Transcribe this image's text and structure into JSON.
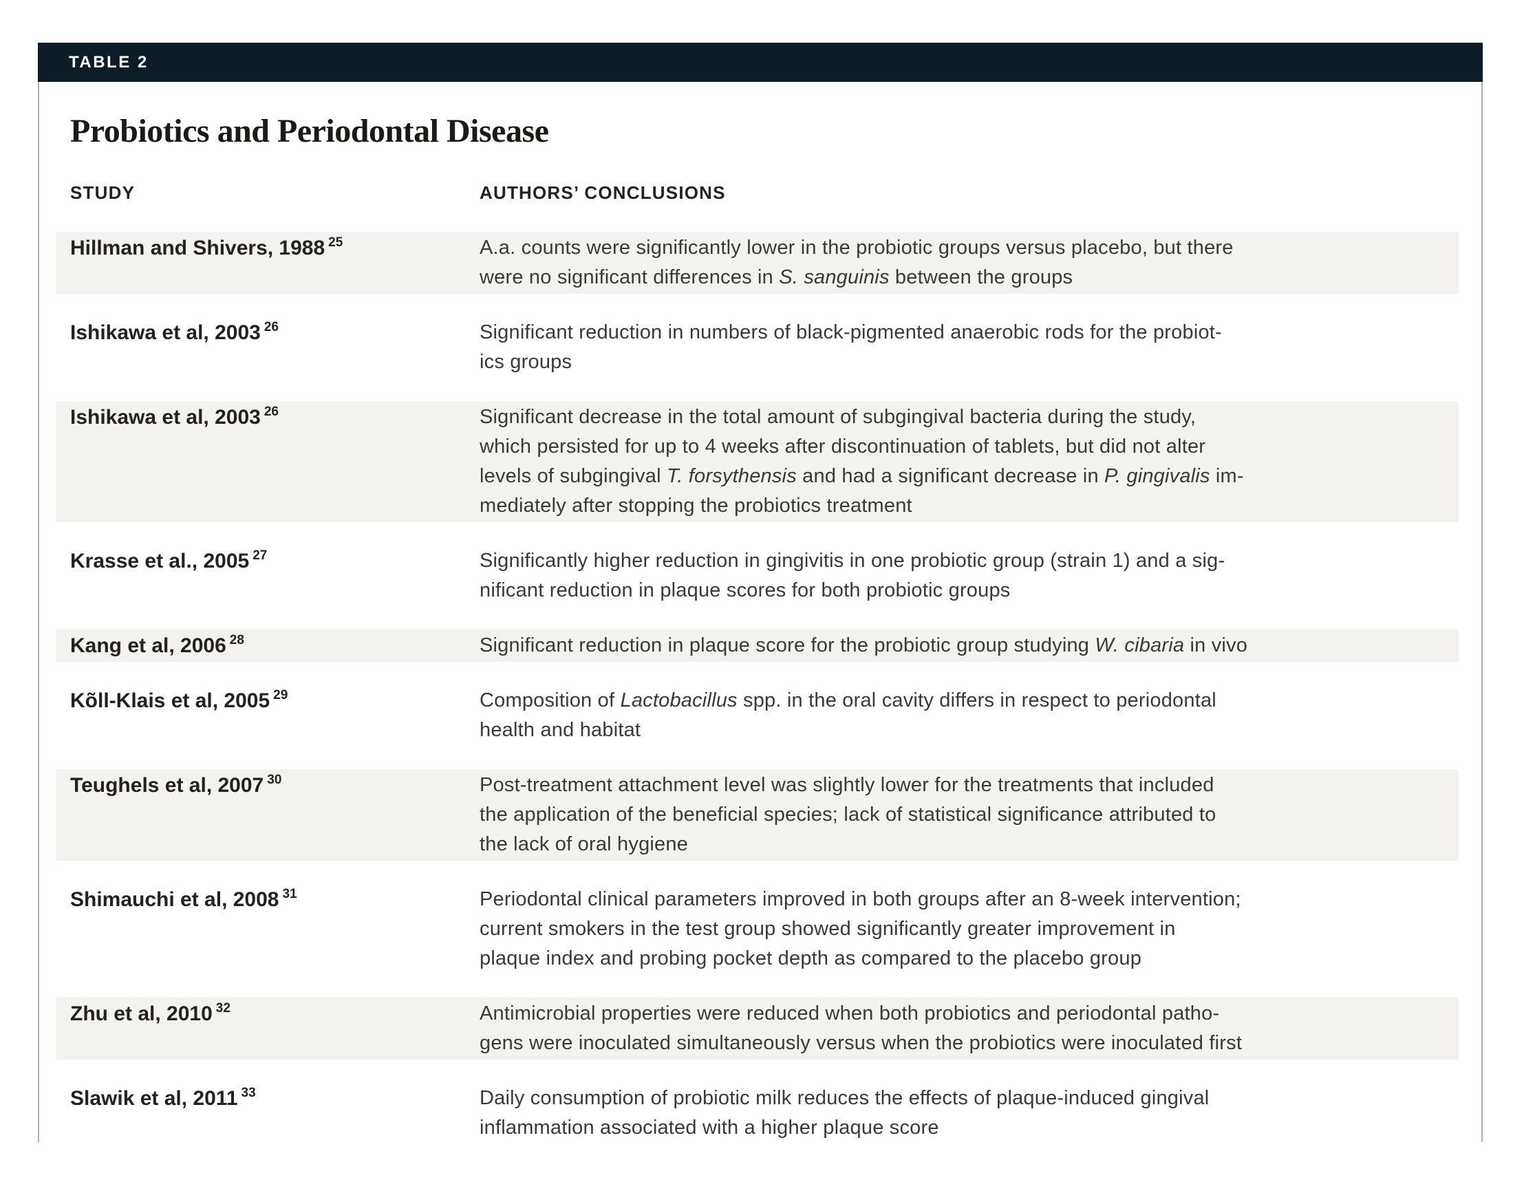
{
  "table_label": "TABLE 2",
  "title": "Probiotics and Periodontal Disease",
  "columns": [
    "STUDY",
    "AUTHORS’ CONCLUSIONS"
  ],
  "colors": {
    "header_bar_bg": "#0c1d27",
    "header_bar_text": "#ffffff",
    "row_stripe": "#f3f2ef",
    "heading_text": "#25211f",
    "body_text": "#3b3835",
    "title_text": "#1d1916",
    "border": "#aeaeae"
  },
  "rows": [
    {
      "study": "Hillman and Shivers, 1988",
      "ref": "25",
      "shaded": true,
      "conclusion": [
        {
          "text": "A.a. counts were significantly lower in the probiotic groups versus placebo, but there\nwere no significant differences in ",
          "italic": false
        },
        {
          "text": "S. sanguinis",
          "italic": true
        },
        {
          "text": " between the groups",
          "italic": false
        }
      ]
    },
    {
      "study": "Ishikawa et al, 2003",
      "ref": "26",
      "shaded": false,
      "conclusion": [
        {
          "text": "Significant reduction in numbers of black-pigmented anaerobic rods for the probiot-\nics groups",
          "italic": false
        }
      ]
    },
    {
      "study": "Ishikawa et al, 2003",
      "ref": "26",
      "shaded": true,
      "conclusion": [
        {
          "text": "Significant decrease in the total amount of subgingival bacteria during the study,\nwhich persisted for up to 4 weeks after discontinuation of tablets, but did not alter\nlevels of subgingival ",
          "italic": false
        },
        {
          "text": "T. forsythensis",
          "italic": true
        },
        {
          "text": " and had a significant decrease in ",
          "italic": false
        },
        {
          "text": "P. gingivalis",
          "italic": true
        },
        {
          "text": " im-\nmediately after stopping the probiotics treatment",
          "italic": false
        }
      ]
    },
    {
      "study": "Krasse et al., 2005",
      "ref": "27",
      "shaded": false,
      "conclusion": [
        {
          "text": "Significantly higher reduction in gingivitis in one probiotic group (strain 1) and a sig-\nnificant reduction in plaque scores for both probiotic groups",
          "italic": false
        }
      ]
    },
    {
      "study": "Kang et al, 2006",
      "ref": "28",
      "shaded": true,
      "conclusion": [
        {
          "text": "Significant reduction in plaque score for the probiotic group studying ",
          "italic": false
        },
        {
          "text": "W. cibaria",
          "italic": true
        },
        {
          "text": " in vivo",
          "italic": false
        }
      ]
    },
    {
      "study": "Kõll-Klais et al, 2005",
      "ref": "29",
      "shaded": false,
      "conclusion": [
        {
          "text": "Composition of ",
          "italic": false
        },
        {
          "text": "Lactobacillus",
          "italic": true
        },
        {
          "text": " spp. in the oral cavity differs in respect to periodontal\nhealth and habitat",
          "italic": false
        }
      ]
    },
    {
      "study": "Teughels et al, 2007",
      "ref": "30",
      "shaded": true,
      "conclusion": [
        {
          "text": "Post-treatment attachment level was slightly lower for the treatments that included\nthe application of the beneficial species; lack of statistical significance attributed to\nthe lack of oral hygiene",
          "italic": false
        }
      ]
    },
    {
      "study": "Shimauchi et al, 2008",
      "ref": "31",
      "shaded": false,
      "conclusion": [
        {
          "text": "Periodontal clinical parameters improved in both groups after an 8-week intervention;\ncurrent smokers in the test group showed significantly greater improvement in\nplaque index and probing pocket depth as compared to the placebo group",
          "italic": false
        }
      ]
    },
    {
      "study": "Zhu et al, 2010",
      "ref": "32",
      "shaded": true,
      "conclusion": [
        {
          "text": "Antimicrobial properties were reduced when both probiotics and periodontal patho-\ngens were inoculated simultaneously versus when the probiotics were inoculated first",
          "italic": false
        }
      ]
    },
    {
      "study": "Slawik et al, 2011",
      "ref": "33",
      "shaded": false,
      "conclusion": [
        {
          "text": "Daily consumption of probiotic milk reduces the effects of plaque-induced gingival\ninflammation associated with a higher plaque score",
          "italic": false
        }
      ]
    }
  ]
}
